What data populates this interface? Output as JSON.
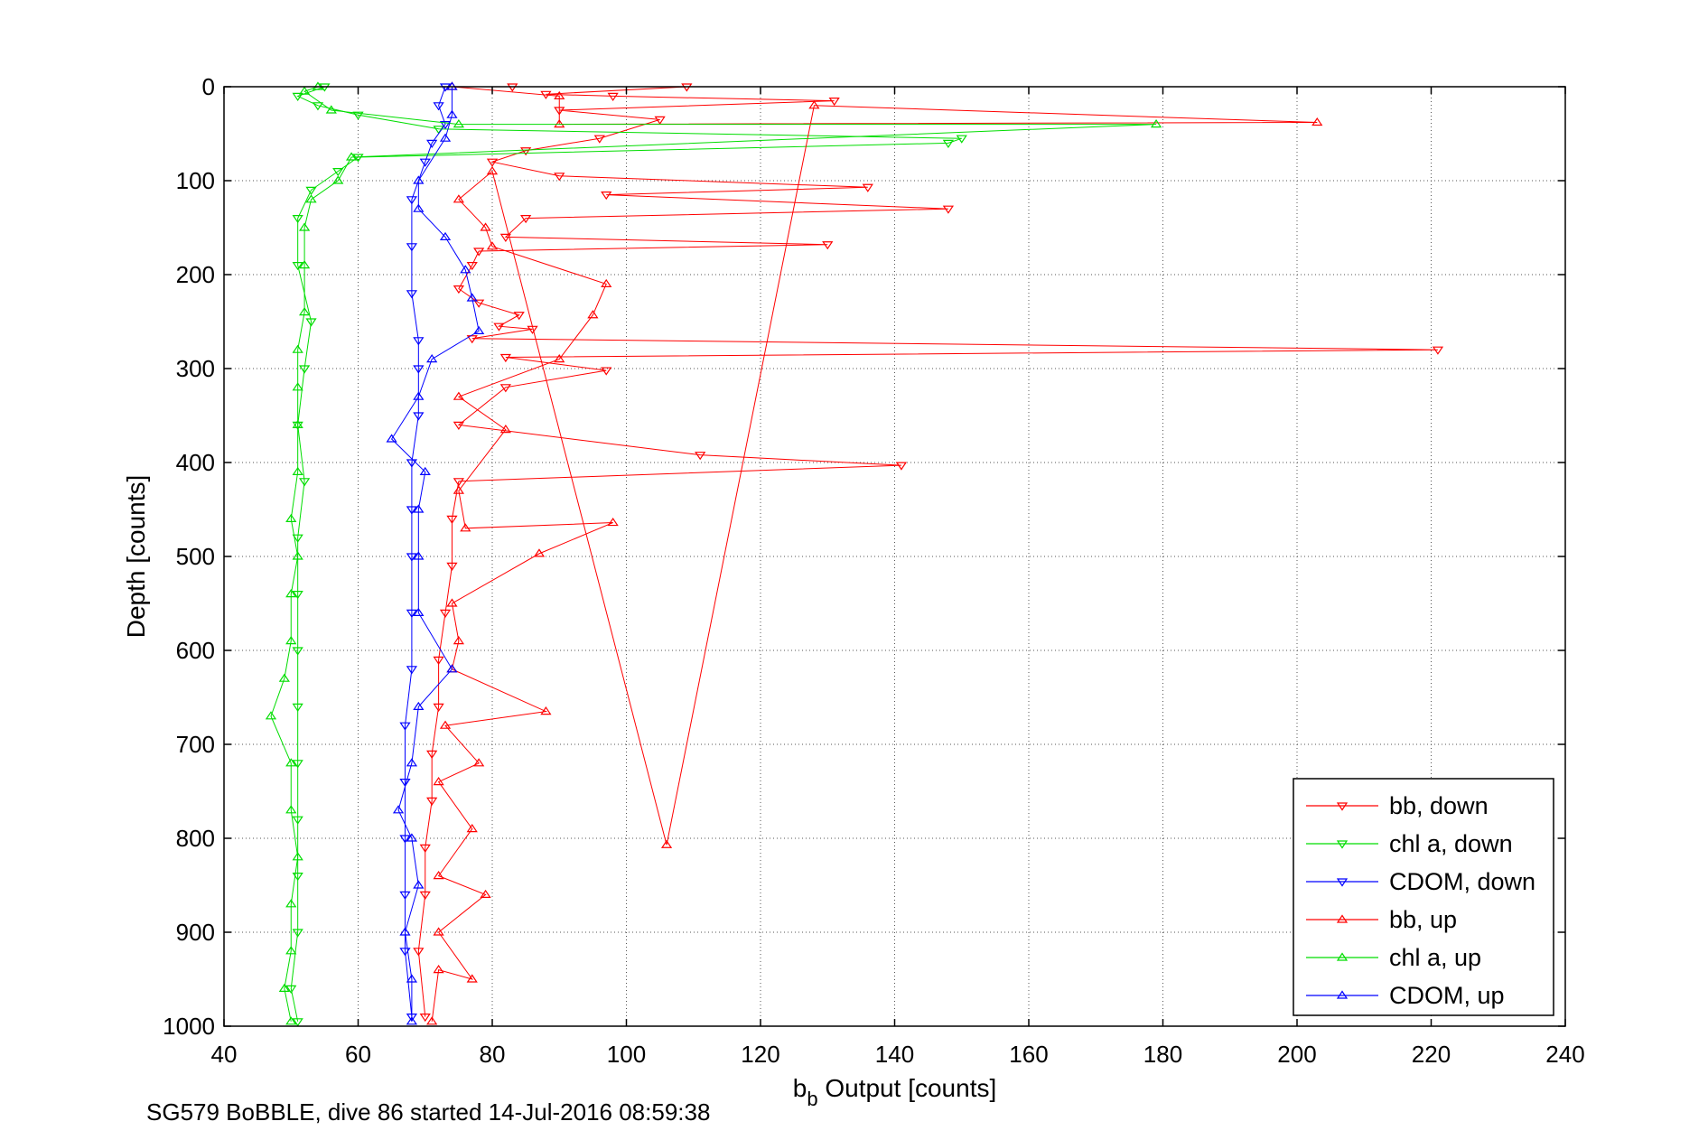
{
  "footer": "SG579 BoBBLE, dive 86 started 14-Jul-2016 08:59:38",
  "chart_data": {
    "type": "scatter",
    "title": "",
    "xlabel_main": "b",
    "xlabel_sub": "b",
    "xlabel_rest": " Output [counts]",
    "ylabel": "Depth [counts]",
    "xlim": [
      40,
      240
    ],
    "ylim": [
      0,
      1000
    ],
    "y_reversed": true,
    "grid": true,
    "xticks": [
      40,
      60,
      80,
      100,
      120,
      140,
      160,
      180,
      200,
      220,
      240
    ],
    "yticks": [
      0,
      100,
      200,
      300,
      400,
      500,
      600,
      700,
      800,
      900,
      1000
    ],
    "legend_position": "bottom-right",
    "series": [
      {
        "name": "bb, down",
        "color": "#ff0000",
        "marker": "triangle-down",
        "line": true,
        "points": [
          [
            83,
            0
          ],
          [
            109,
            0
          ],
          [
            88,
            8
          ],
          [
            98,
            10
          ],
          [
            131,
            15
          ],
          [
            90,
            25
          ],
          [
            105,
            35
          ],
          [
            96,
            55
          ],
          [
            85,
            68
          ],
          [
            80,
            80
          ],
          [
            90,
            95
          ],
          [
            136,
            107
          ],
          [
            97,
            115
          ],
          [
            148,
            130
          ],
          [
            85,
            140
          ],
          [
            82,
            160
          ],
          [
            130,
            168
          ],
          [
            78,
            175
          ],
          [
            77,
            190
          ],
          [
            75,
            215
          ],
          [
            78,
            230
          ],
          [
            84,
            243
          ],
          [
            81,
            255
          ],
          [
            86,
            258
          ],
          [
            77,
            268
          ],
          [
            221,
            280
          ],
          [
            82,
            288
          ],
          [
            97,
            302
          ],
          [
            82,
            320
          ],
          [
            75,
            360
          ],
          [
            111,
            392
          ],
          [
            141,
            403
          ],
          [
            75,
            420
          ],
          [
            74,
            460
          ],
          [
            74,
            510
          ],
          [
            73,
            560
          ],
          [
            72,
            610
          ],
          [
            72,
            660
          ],
          [
            71,
            710
          ],
          [
            71,
            760
          ],
          [
            70,
            810
          ],
          [
            70,
            860
          ],
          [
            69,
            920
          ],
          [
            70,
            990
          ]
        ]
      },
      {
        "name": "chl a, down",
        "color": "#00dd00",
        "marker": "triangle-down",
        "line": true,
        "points": [
          [
            55,
            0
          ],
          [
            51,
            10
          ],
          [
            54,
            20
          ],
          [
            60,
            30
          ],
          [
            72,
            45
          ],
          [
            150,
            55
          ],
          [
            148,
            60
          ],
          [
            60,
            75
          ],
          [
            57,
            90
          ],
          [
            53,
            110
          ],
          [
            51,
            140
          ],
          [
            51,
            190
          ],
          [
            53,
            250
          ],
          [
            52,
            300
          ],
          [
            51,
            360
          ],
          [
            52,
            420
          ],
          [
            51,
            480
          ],
          [
            51,
            540
          ],
          [
            51,
            600
          ],
          [
            51,
            660
          ],
          [
            51,
            720
          ],
          [
            51,
            780
          ],
          [
            51,
            840
          ],
          [
            51,
            900
          ],
          [
            50,
            960
          ],
          [
            51,
            995
          ]
        ]
      },
      {
        "name": "CDOM, down",
        "color": "#0000ff",
        "marker": "triangle-down",
        "line": true,
        "points": [
          [
            73,
            0
          ],
          [
            72,
            20
          ],
          [
            73,
            40
          ],
          [
            71,
            60
          ],
          [
            70,
            80
          ],
          [
            68,
            120
          ],
          [
            68,
            170
          ],
          [
            68,
            220
          ],
          [
            69,
            270
          ],
          [
            69,
            300
          ],
          [
            69,
            350
          ],
          [
            68,
            400
          ],
          [
            68,
            450
          ],
          [
            68,
            500
          ],
          [
            68,
            560
          ],
          [
            68,
            620
          ],
          [
            67,
            680
          ],
          [
            67,
            740
          ],
          [
            67,
            800
          ],
          [
            67,
            860
          ],
          [
            67,
            920
          ],
          [
            68,
            990
          ]
        ]
      },
      {
        "name": "bb, up",
        "color": "#ff0000",
        "marker": "triangle-up",
        "line": true,
        "points": [
          [
            71,
            995
          ],
          [
            72,
            940
          ],
          [
            77,
            950
          ],
          [
            72,
            900
          ],
          [
            79,
            860
          ],
          [
            72,
            840
          ],
          [
            77,
            790
          ],
          [
            72,
            740
          ],
          [
            78,
            720
          ],
          [
            73,
            680
          ],
          [
            88,
            665
          ],
          [
            74,
            620
          ],
          [
            75,
            590
          ],
          [
            74,
            550
          ],
          [
            87,
            497
          ],
          [
            98,
            464
          ],
          [
            76,
            470
          ],
          [
            75,
            430
          ],
          [
            82,
            365
          ],
          [
            75,
            330
          ],
          [
            90,
            290
          ],
          [
            95,
            243
          ],
          [
            97,
            210
          ],
          [
            80,
            170
          ],
          [
            79,
            150
          ],
          [
            75,
            120
          ],
          [
            80,
            90
          ],
          [
            106,
            807
          ],
          [
            128,
            20
          ],
          [
            203,
            38
          ],
          [
            90,
            40
          ],
          [
            90,
            10
          ],
          [
            74,
            0
          ]
        ]
      },
      {
        "name": "chl a, up",
        "color": "#00dd00",
        "marker": "triangle-up",
        "line": true,
        "points": [
          [
            50,
            995
          ],
          [
            49,
            960
          ],
          [
            50,
            920
          ],
          [
            50,
            870
          ],
          [
            51,
            820
          ],
          [
            50,
            770
          ],
          [
            50,
            720
          ],
          [
            47,
            670
          ],
          [
            49,
            630
          ],
          [
            50,
            590
          ],
          [
            50,
            540
          ],
          [
            51,
            500
          ],
          [
            50,
            460
          ],
          [
            51,
            410
          ],
          [
            51,
            360
          ],
          [
            51,
            320
          ],
          [
            51,
            280
          ],
          [
            52,
            240
          ],
          [
            52,
            190
          ],
          [
            52,
            150
          ],
          [
            53,
            120
          ],
          [
            57,
            100
          ],
          [
            59,
            75
          ],
          [
            179,
            40
          ],
          [
            75,
            40
          ],
          [
            56,
            25
          ],
          [
            52,
            5
          ],
          [
            54,
            0
          ]
        ]
      },
      {
        "name": "CDOM, up",
        "color": "#0000ff",
        "marker": "triangle-up",
        "line": true,
        "points": [
          [
            68,
            995
          ],
          [
            68,
            950
          ],
          [
            67,
            900
          ],
          [
            69,
            850
          ],
          [
            68,
            800
          ],
          [
            66,
            770
          ],
          [
            68,
            720
          ],
          [
            69,
            660
          ],
          [
            74,
            620
          ],
          [
            69,
            560
          ],
          [
            69,
            500
          ],
          [
            69,
            450
          ],
          [
            70,
            410
          ],
          [
            65,
            375
          ],
          [
            69,
            330
          ],
          [
            71,
            290
          ],
          [
            78,
            260
          ],
          [
            77,
            225
          ],
          [
            76,
            195
          ],
          [
            73,
            160
          ],
          [
            69,
            130
          ],
          [
            69,
            100
          ],
          [
            73,
            55
          ],
          [
            74,
            30
          ],
          [
            74,
            0
          ]
        ]
      }
    ]
  }
}
